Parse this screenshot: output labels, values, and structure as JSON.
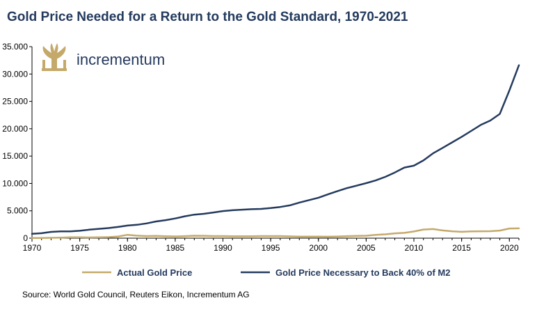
{
  "title": "Gold Price Needed for a Return to the Gold Standard, 1970-2021",
  "brand": {
    "name": "incrementum",
    "logo_icon": "tree-logo-icon"
  },
  "source": "Source: World Gold Council, Reuters Eikon, Incrementum AG",
  "chart_data": {
    "type": "line",
    "title": "Gold Price Needed for a Return to the Gold Standard, 1970-2021",
    "xlabel": "",
    "ylabel": "",
    "xlim": [
      1970,
      2021
    ],
    "ylim": [
      0,
      35000
    ],
    "x_ticks": [
      "1970",
      "1975",
      "1980",
      "1985",
      "1990",
      "1995",
      "2000",
      "2005",
      "2010",
      "2015",
      "2020"
    ],
    "y_ticks": [
      "0",
      "5.000",
      "10.000",
      "15.000",
      "20.000",
      "25.000",
      "30.000",
      "35.000"
    ],
    "grid": false,
    "legend_position": "bottom",
    "x": [
      1970,
      1971,
      1972,
      1973,
      1974,
      1975,
      1976,
      1977,
      1978,
      1979,
      1980,
      1981,
      1982,
      1983,
      1984,
      1985,
      1986,
      1987,
      1988,
      1989,
      1990,
      1991,
      1992,
      1993,
      1994,
      1995,
      1996,
      1997,
      1998,
      1999,
      2000,
      2001,
      2002,
      2003,
      2004,
      2005,
      2006,
      2007,
      2008,
      2009,
      2010,
      2011,
      2012,
      2013,
      2014,
      2015,
      2016,
      2017,
      2018,
      2019,
      2020,
      2021
    ],
    "series": [
      {
        "name": "Actual Gold Price",
        "color": "#c4a96a",
        "values": [
          36,
          41,
          58,
          97,
          154,
          161,
          125,
          148,
          193,
          307,
          612,
          460,
          376,
          424,
          361,
          317,
          368,
          447,
          437,
          381,
          384,
          362,
          344,
          360,
          384,
          384,
          388,
          331,
          294,
          279,
          279,
          271,
          310,
          363,
          409,
          445,
          604,
          697,
          872,
          972,
          1225,
          1572,
          1669,
          1411,
          1266,
          1160,
          1251,
          1257,
          1268,
          1393,
          1770,
          1799
        ]
      },
      {
        "name": "Gold Price Necessary to Back 40% of M2",
        "color": "#243a5e",
        "values": [
          800,
          900,
          1150,
          1250,
          1250,
          1350,
          1550,
          1700,
          1850,
          2050,
          2300,
          2450,
          2700,
          3050,
          3300,
          3600,
          4000,
          4300,
          4450,
          4700,
          4950,
          5100,
          5200,
          5300,
          5350,
          5500,
          5700,
          6000,
          6500,
          6950,
          7400,
          8000,
          8600,
          9150,
          9600,
          10050,
          10550,
          11200,
          12000,
          12900,
          13250,
          14200,
          15500,
          16500,
          17500,
          18500,
          19600,
          20700,
          21500,
          22700,
          27000,
          31600
        ]
      }
    ]
  }
}
